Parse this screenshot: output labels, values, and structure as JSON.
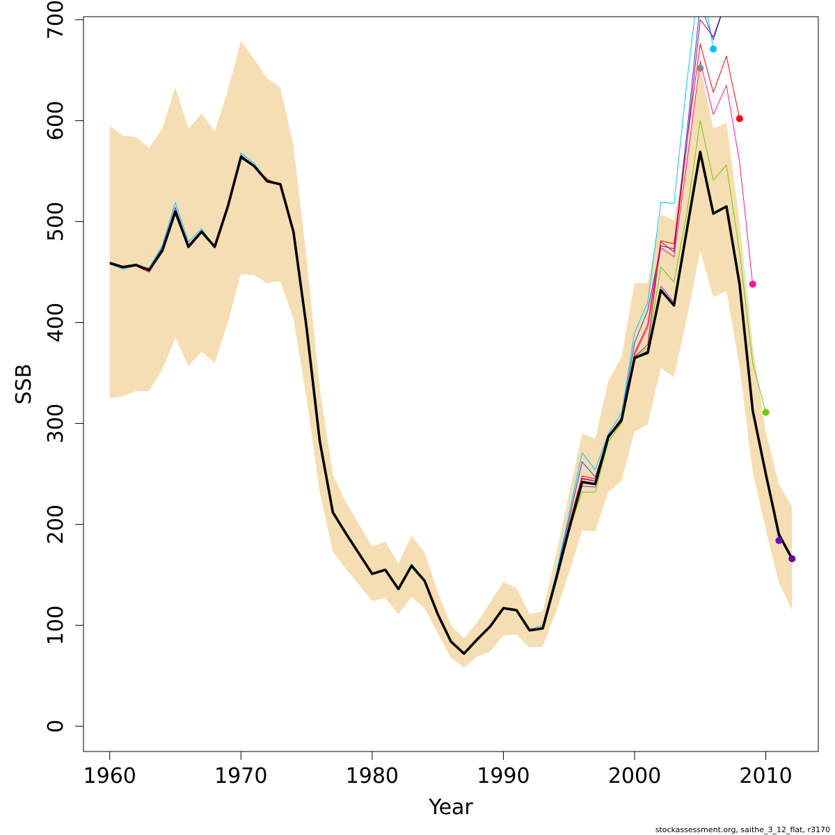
{
  "chart_data": {
    "type": "line",
    "xlabel": "Year",
    "ylabel": "SSB",
    "footer": "stockassessment.org, saithe_3_12_flat, r3170",
    "xlim": [
      1958,
      2014
    ],
    "ylim": [
      -25,
      703
    ],
    "x_ticks": [
      1960,
      1970,
      1980,
      1990,
      2000,
      2010
    ],
    "y_ticks": [
      0,
      100,
      200,
      300,
      400,
      500,
      600,
      700
    ],
    "x_tick_labels": [
      "1960",
      "1970",
      "1980",
      "1990",
      "2000",
      "2010"
    ],
    "y_tick_labels": [
      "0",
      "100",
      "200",
      "300",
      "400",
      "500",
      "600",
      "700"
    ],
    "confidence_band": {
      "color": "#F5DEB3",
      "years": [
        1960,
        1961,
        1962,
        1963,
        1964,
        1965,
        1966,
        1967,
        1968,
        1969,
        1970,
        1971,
        1972,
        1973,
        1974,
        1975,
        1976,
        1977,
        1978,
        1979,
        1980,
        1981,
        1982,
        1983,
        1984,
        1985,
        1986,
        1987,
        1988,
        1989,
        1990,
        1991,
        1992,
        1993,
        1994,
        1995,
        1996,
        1997,
        1998,
        1999,
        2000,
        2001,
        2002,
        2003,
        2004,
        2005,
        2006,
        2007,
        2008,
        2009,
        2010,
        2011,
        2012
      ],
      "upper": [
        595,
        585,
        584,
        573,
        592,
        633,
        592,
        607,
        589,
        630,
        679,
        661,
        642,
        633,
        575,
        465,
        335,
        250,
        222,
        200,
        178,
        183,
        161,
        189,
        172,
        133,
        100,
        87,
        103,
        123,
        143,
        137,
        111,
        114,
        170,
        230,
        290,
        285,
        342,
        366,
        439,
        439,
        507,
        501,
        574,
        655,
        592,
        598,
        500,
        378,
        291,
        240,
        217
      ],
      "lower": [
        325,
        327,
        332,
        332,
        353,
        385,
        357,
        371,
        360,
        400,
        448,
        447,
        439,
        441,
        404,
        325,
        232,
        173,
        156,
        140,
        124,
        127,
        111,
        128,
        117,
        92,
        68,
        58,
        69,
        74,
        90,
        91,
        78,
        79,
        113,
        152,
        194,
        193,
        232,
        243,
        292,
        299,
        355,
        346,
        405,
        471,
        425,
        431,
        356,
        252,
        195,
        142,
        115
      ]
    },
    "series": [
      {
        "color": "#000000",
        "width": 3.6,
        "start": 1960,
        "values": [
          459,
          455,
          457,
          452,
          471,
          510,
          475,
          490,
          475,
          515,
          564,
          555,
          540,
          537,
          490,
          395,
          283,
          212,
          191,
          171,
          151,
          155,
          136,
          159,
          144,
          111,
          84,
          72,
          86,
          99,
          117,
          115,
          95,
          97,
          145,
          195,
          242,
          240,
          287,
          303,
          365,
          370,
          432,
          417,
          493,
          569,
          508,
          515,
          438,
          313,
          250,
          190,
          166
        ],
        "end_point": false
      },
      {
        "color": "#00BFFF",
        "width": 1,
        "start": 1960,
        "values": [
          458,
          453,
          456,
          454,
          476,
          519,
          480,
          493,
          474,
          516,
          568,
          558,
          540,
          538,
          490,
          395,
          283,
          212,
          191,
          171,
          151,
          155,
          136,
          161,
          144,
          112,
          84,
          72,
          86,
          100,
          118,
          116,
          96,
          100,
          150,
          210,
          271,
          254,
          290,
          310,
          390,
          420,
          519,
          518,
          640,
          748,
          671
        ],
        "end_point": true
      },
      {
        "color": "#1E40D0",
        "width": 1,
        "start": 1960,
        "values": [
          459,
          454,
          456,
          453,
          474,
          514,
          477,
          491,
          474,
          515,
          566,
          556,
          540,
          537,
          490,
          395,
          283,
          212,
          191,
          171,
          151,
          155,
          136,
          160,
          144,
          111,
          84,
          72,
          86,
          99,
          117,
          115,
          95,
          98,
          148,
          205,
          262,
          247,
          287,
          306,
          380,
          412,
          476,
          473,
          590,
          716,
          680,
          720,
          720,
          720
        ],
        "end_point": false
      },
      {
        "color": "#FF0000",
        "width": 1,
        "start": 1960,
        "values": [
          458,
          454,
          456,
          450,
          470,
          507,
          474,
          489,
          474,
          515,
          563,
          555,
          542,
          536,
          490,
          395,
          283,
          212,
          191,
          171,
          151,
          155,
          136,
          159,
          144,
          111,
          84,
          72,
          86,
          99,
          117,
          115,
          95,
          97,
          146,
          200,
          248,
          245,
          288,
          305,
          370,
          398,
          481,
          478,
          580,
          676,
          628,
          664,
          602
        ],
        "end_point": true
      },
      {
        "color": "#FF1493",
        "width": 1,
        "start": 1960,
        "values": [
          458,
          454,
          456,
          451,
          470,
          508,
          474,
          489,
          474,
          515,
          563,
          555,
          541,
          536,
          490,
          395,
          283,
          212,
          191,
          171,
          151,
          155,
          136,
          159,
          144,
          111,
          84,
          72,
          86,
          99,
          117,
          115,
          95,
          97,
          146,
          198,
          246,
          243,
          286,
          304,
          368,
          395,
          474,
          465,
          560,
          659,
          606,
          635,
          559,
          438
        ],
        "end_point": true
      },
      {
        "color": "#66CC00",
        "width": 1,
        "start": 1960,
        "values": [
          459,
          455,
          457,
          452,
          471,
          510,
          475,
          490,
          475,
          515,
          564,
          555,
          540,
          537,
          490,
          395,
          283,
          212,
          191,
          171,
          151,
          155,
          136,
          159,
          144,
          111,
          84,
          72,
          86,
          99,
          117,
          115,
          95,
          97,
          145,
          195,
          232,
          232,
          282,
          300,
          365,
          375,
          455,
          440,
          510,
          600,
          541,
          556,
          470,
          360,
          311
        ],
        "end_point": true
      },
      {
        "color": "#8A2BE2",
        "width": 1,
        "start": 1960,
        "values": [
          459,
          455,
          457,
          452,
          471,
          510,
          475,
          490,
          475,
          515,
          564,
          555,
          540,
          537,
          490,
          395,
          283,
          212,
          191,
          171,
          151,
          155,
          136,
          159,
          144,
          111,
          84,
          72,
          86,
          99,
          117,
          115,
          95,
          97,
          145,
          195,
          238,
          237,
          285,
          302,
          365,
          372,
          436,
          420,
          495,
          570,
          507,
          515,
          438,
          314,
          250,
          184
        ],
        "end_point": true
      },
      {
        "color": "#4B0082",
        "width": 1.6,
        "start": 1960,
        "values": [
          459,
          455,
          457,
          452,
          471,
          510,
          475,
          490,
          475,
          515,
          564,
          555,
          540,
          537,
          490,
          395,
          283,
          212,
          191,
          171,
          151,
          155,
          136,
          159,
          144,
          111,
          84,
          72,
          86,
          99,
          117,
          115,
          95,
          97,
          145,
          195,
          242,
          240,
          287,
          303,
          365,
          370,
          432,
          417,
          493,
          569,
          508,
          515,
          438,
          313,
          250,
          190,
          166
        ],
        "end_point": true
      },
      {
        "color": "#A0007A",
        "width": 1,
        "start": 1960,
        "values": [
          459,
          455,
          457,
          452,
          471,
          510,
          475,
          490,
          475,
          515,
          564,
          555,
          540,
          537,
          490,
          395,
          283,
          212,
          191,
          171,
          151,
          155,
          136,
          159,
          144,
          111,
          84,
          72,
          86,
          99,
          117,
          115,
          95,
          97,
          146,
          198,
          245,
          243,
          286,
          304,
          366,
          378,
          480,
          470,
          580,
          700,
          683,
          720
        ],
        "end_point": false
      }
    ],
    "extra_points": [
      {
        "color": "#888888",
        "x": 2005,
        "y": 652
      }
    ],
    "end_point_colors": {
      "#8A2BE2": "#6A0DAD",
      "#4B0082": "#660099"
    }
  }
}
